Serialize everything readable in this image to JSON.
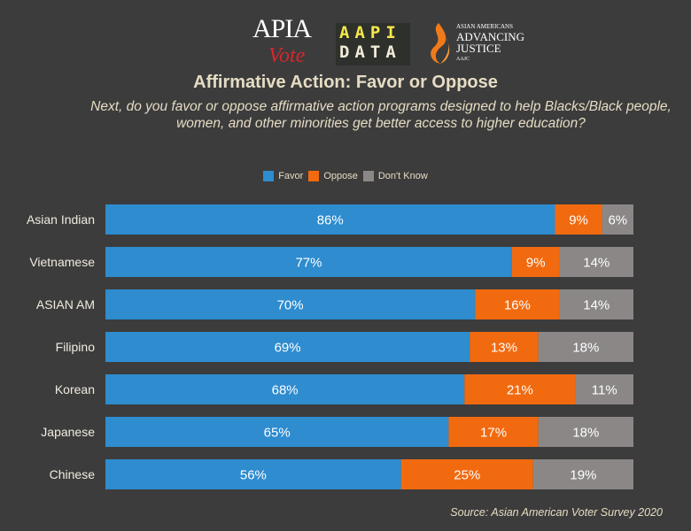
{
  "logos": {
    "apia_vote": {
      "line1": "APIA",
      "line2": "Vote"
    },
    "aapi_data": {
      "line1": "AAPI",
      "line2": "DATA"
    },
    "aajc": {
      "small": "ASIAN AMERICANS",
      "line1": "ADVANCING",
      "line2": "JUSTICE",
      "abbr": "AAJC"
    }
  },
  "source": "Source: Asian American Voter Survey 2020",
  "chart_data": {
    "type": "bar",
    "orientation": "horizontal",
    "stacked": true,
    "title": "Affirmative Action: Favor or Oppose",
    "subtitle": "Next, do you favor or oppose affirmative action programs designed to help Blacks/Black people, women, and other minorities get better access to higher education?",
    "legend_position": "top-center",
    "categories": [
      "Asian Indian",
      "Vietnamese",
      "ASIAN AM",
      "Filipino",
      "Korean",
      "Japanese",
      "Chinese"
    ],
    "series": [
      {
        "name": "Favor",
        "color": "#2e8ccf",
        "values": [
          86,
          77,
          70,
          69,
          68,
          65,
          56
        ]
      },
      {
        "name": "Oppose",
        "color": "#f26a0f",
        "values": [
          9,
          9,
          16,
          13,
          21,
          17,
          25
        ]
      },
      {
        "name": "Don't Know",
        "color": "#8b8787",
        "values": [
          6,
          14,
          14,
          18,
          11,
          18,
          19
        ]
      }
    ],
    "value_suffix": "%",
    "grid": false
  }
}
